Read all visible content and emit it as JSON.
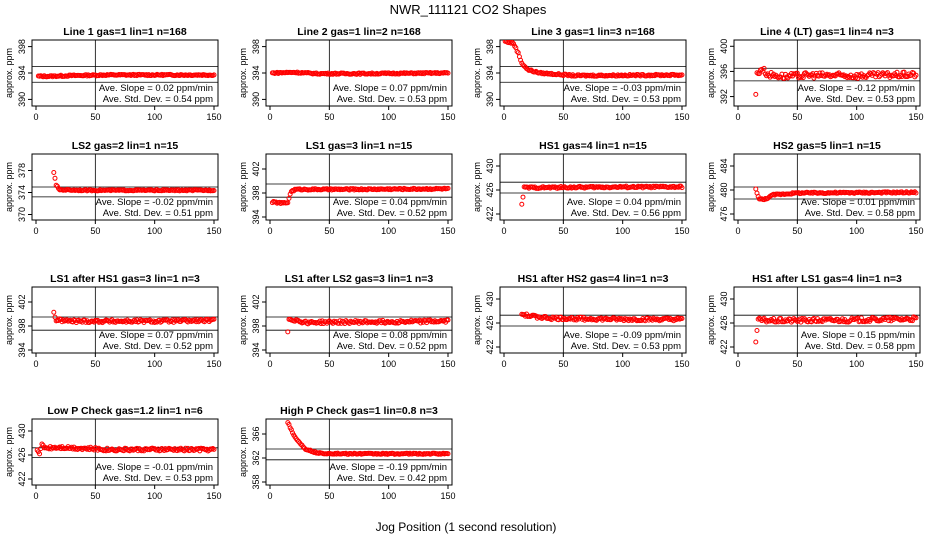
{
  "figure": {
    "title": "NWR_111121  CO2 Shapes",
    "xlabel": "Jog Position (1 second resolution)",
    "colors": {
      "points": "#ff0000",
      "axes": "#000000",
      "lines": "#000000"
    }
  },
  "chart_data": [
    {
      "type": "scatter",
      "title": "Line 1 gas=1 lin=1 n=168",
      "ylabel": "approx. ppm",
      "xlim": [
        0,
        150
      ],
      "ylim": [
        389,
        399
      ],
      "xticks": [
        0,
        50,
        100,
        150
      ],
      "yticks": [
        390,
        394,
        398
      ],
      "hlines": [
        395.0,
        392.6
      ],
      "vline": 50,
      "xstart": 2,
      "xend": 150,
      "points": [
        [
          2,
          393.5
        ],
        [
          10,
          393.5
        ],
        [
          30,
          393.6
        ],
        [
          60,
          393.7
        ],
        [
          100,
          393.7
        ],
        [
          150,
          393.7
        ]
      ],
      "noise": 0.1,
      "annotation": [
        "Ave. Slope = 0.02  ppm/min",
        "Ave. Std. Dev. = 0.54  ppm"
      ]
    },
    {
      "type": "scatter",
      "title": "Line 2 gas=1 lin=2 n=168",
      "ylabel": "approx. ppm",
      "xlim": [
        0,
        150
      ],
      "ylim": [
        389,
        399
      ],
      "xticks": [
        0,
        50,
        100,
        150
      ],
      "yticks": [
        390,
        394,
        398
      ],
      "hlines": [],
      "vline": 50,
      "xstart": 2,
      "xend": 150,
      "points": [
        [
          2,
          394.0
        ],
        [
          20,
          394.1
        ],
        [
          40,
          393.9
        ],
        [
          80,
          393.9
        ],
        [
          150,
          394.0
        ]
      ],
      "noise": 0.1,
      "annotation": [
        "Ave. Slope = 0.07  ppm/min",
        "Ave. Std. Dev. = 0.53  ppm"
      ]
    },
    {
      "type": "scatter",
      "title": "Line 3 gas=1 lin=3 n=168",
      "ylabel": "approx. ppm",
      "xlim": [
        0,
        150
      ],
      "ylim": [
        389,
        399
      ],
      "xticks": [
        0,
        50,
        100,
        150
      ],
      "yticks": [
        390,
        394,
        398
      ],
      "hlines": [
        395.0,
        392.6
      ],
      "vline": 50,
      "xstart": 1,
      "xend": 150,
      "points": [
        [
          1,
          398.8
        ],
        [
          8,
          398.5
        ],
        [
          12,
          397.0
        ],
        [
          15,
          395.5
        ],
        [
          20,
          394.5
        ],
        [
          30,
          394.0
        ],
        [
          60,
          393.6
        ],
        [
          150,
          393.7
        ]
      ],
      "noise": 0.12,
      "annotation": [
        "Ave. Slope = -0.03  ppm/min",
        "Ave. Std. Dev. = 0.53  ppm"
      ]
    },
    {
      "type": "scatter",
      "title": "Line 4 (LT) gas=1 lin=4 n=3",
      "ylabel": "approx. ppm",
      "xlim": [
        0,
        150
      ],
      "ylim": [
        390.5,
        401
      ],
      "xticks": [
        0,
        50,
        100,
        150
      ],
      "yticks": [
        392,
        396,
        400
      ],
      "hlines": [
        396.5,
        394.5
      ],
      "vline": 50,
      "xstart": 15,
      "xend": 150,
      "points": [
        [
          15,
          392.5
        ],
        [
          16,
          395.5
        ],
        [
          20,
          396.5
        ],
        [
          25,
          395.5
        ],
        [
          40,
          395.2
        ],
        [
          60,
          395.4
        ],
        [
          100,
          395.3
        ],
        [
          150,
          395.5
        ]
      ],
      "noise": 0.45,
      "annotation": [
        "Ave. Slope = -0.12  ppm/min",
        "Ave. Std. Dev. = 0.53  ppm"
      ]
    },
    {
      "type": "scatter",
      "title": "LS2 gas=2 lin=1 n=15",
      "ylabel": "approx. ppm",
      "xlim": [
        0,
        150
      ],
      "ylim": [
        369,
        381
      ],
      "xticks": [
        0,
        50,
        100,
        150
      ],
      "yticks": [
        370,
        374,
        378
      ],
      "hlines": [
        375.0,
        373.2
      ],
      "vline": 50,
      "xstart": 15,
      "xend": 150,
      "points": [
        [
          15,
          377.7
        ],
        [
          17,
          375.3
        ],
        [
          20,
          374.5
        ],
        [
          40,
          374.4
        ],
        [
          100,
          374.4
        ],
        [
          150,
          374.4
        ]
      ],
      "noise": 0.1,
      "annotation": [
        "Ave. Slope = -0.02  ppm/min",
        "Ave. Std. Dev. = 0.51  ppm"
      ]
    },
    {
      "type": "scatter",
      "title": "LS1 gas=3 lin=1 n=15",
      "ylabel": "approx. ppm",
      "xlim": [
        0,
        150
      ],
      "ylim": [
        393.5,
        404.5
      ],
      "xticks": [
        0,
        50,
        100,
        150
      ],
      "yticks": [
        394,
        398,
        402
      ],
      "hlines": [
        399.5,
        397.3
      ],
      "vline": 50,
      "xstart": 2,
      "xend": 150,
      "points": [
        [
          2,
          396.5
        ],
        [
          10,
          396.3
        ],
        [
          15,
          396.4
        ],
        [
          16,
          397.2
        ],
        [
          18,
          398.3
        ],
        [
          22,
          398.6
        ],
        [
          60,
          398.6
        ],
        [
          150,
          398.7
        ]
      ],
      "noise": 0.12,
      "annotation": [
        "Ave. Slope = 0.04  ppm/min",
        "Ave. Std. Dev. = 0.52  ppm"
      ]
    },
    {
      "type": "scatter",
      "title": "HS1 gas=4 lin=1 n=15",
      "ylabel": "approx. ppm",
      "xlim": [
        0,
        150
      ],
      "ylim": [
        421,
        432
      ],
      "xticks": [
        0,
        50,
        100,
        150
      ],
      "yticks": [
        422,
        426,
        430
      ],
      "hlines": [
        427.3,
        425.5
      ],
      "vline": 50,
      "xstart": 15,
      "xend": 150,
      "points": [
        [
          15,
          423.5
        ],
        [
          17,
          426.4
        ],
        [
          30,
          426.4
        ],
        [
          100,
          426.5
        ],
        [
          150,
          426.5
        ]
      ],
      "noise": 0.15,
      "annotation": [
        "Ave. Slope = 0.04  ppm/min",
        "Ave. Std. Dev. = 0.56  ppm"
      ]
    },
    {
      "type": "scatter",
      "title": "HS2 gas=5 lin=1 n=15",
      "ylabel": "approx. ppm",
      "xlim": [
        0,
        150
      ],
      "ylim": [
        475,
        486
      ],
      "xticks": [
        0,
        50,
        100,
        150
      ],
      "yticks": [
        476,
        480,
        484
      ],
      "hlines": [
        480.5,
        478.5
      ],
      "vline": 50,
      "xstart": 15,
      "xend": 150,
      "points": [
        [
          15,
          480.1
        ],
        [
          18,
          478.5
        ],
        [
          22,
          478.4
        ],
        [
          30,
          479.2
        ],
        [
          50,
          479.5
        ],
        [
          150,
          479.6
        ]
      ],
      "noise": 0.12,
      "annotation": [
        "Ave. Slope = 0.01  ppm/min",
        "Ave. Std. Dev. = 0.58  ppm"
      ]
    },
    {
      "type": "scatter",
      "title": "LS1 after HS1 gas=3 lin=1 n=3",
      "ylabel": "approx. ppm",
      "xlim": [
        0,
        150
      ],
      "ylim": [
        393.5,
        404.5
      ],
      "xticks": [
        0,
        50,
        100,
        150
      ],
      "yticks": [
        394,
        398,
        402
      ],
      "hlines": [
        399.5,
        397.3
      ],
      "vline": 50,
      "xstart": 15,
      "xend": 150,
      "points": [
        [
          15,
          400.2
        ],
        [
          17,
          399.0
        ],
        [
          30,
          398.8
        ],
        [
          100,
          398.8
        ],
        [
          150,
          398.9
        ]
      ],
      "noise": 0.25,
      "annotation": [
        "Ave. Slope = 0.07  ppm/min",
        "Ave. Std. Dev. = 0.52  ppm"
      ]
    },
    {
      "type": "scatter",
      "title": "LS1 after LS2 gas=3 lin=1 n=3",
      "ylabel": "approx. ppm",
      "xlim": [
        0,
        150
      ],
      "ylim": [
        393.5,
        404.5
      ],
      "xticks": [
        0,
        50,
        100,
        150
      ],
      "yticks": [
        394,
        398,
        402
      ],
      "hlines": [
        399.5,
        397.3
      ],
      "vline": 50,
      "xstart": 15,
      "xend": 150,
      "points": [
        [
          15,
          397.0
        ],
        [
          16,
          399.2
        ],
        [
          30,
          398.6
        ],
        [
          100,
          398.7
        ],
        [
          150,
          398.8
        ]
      ],
      "noise": 0.25,
      "annotation": [
        "Ave. Slope = 0.08  ppm/min",
        "Ave. Std. Dev. = 0.52  ppm"
      ]
    },
    {
      "type": "scatter",
      "title": "HS1 after HS2 gas=4 lin=1 n=3",
      "ylabel": "approx. ppm",
      "xlim": [
        0,
        150
      ],
      "ylim": [
        421,
        432
      ],
      "xticks": [
        0,
        50,
        100,
        150
      ],
      "yticks": [
        422,
        426,
        430
      ],
      "hlines": [
        427.3,
        425.5
      ],
      "vline": 50,
      "xstart": 15,
      "xend": 150,
      "points": [
        [
          15,
          427.5
        ],
        [
          20,
          427.2
        ],
        [
          40,
          426.8
        ],
        [
          100,
          426.6
        ],
        [
          150,
          426.6
        ]
      ],
      "noise": 0.25,
      "annotation": [
        "Ave. Slope = -0.09  ppm/min",
        "Ave. Std. Dev. = 0.53  ppm"
      ]
    },
    {
      "type": "scatter",
      "title": "HS1 after LS1 gas=4 lin=1 n=3",
      "ylabel": "approx. ppm",
      "xlim": [
        0,
        150
      ],
      "ylim": [
        421,
        432
      ],
      "xticks": [
        0,
        50,
        100,
        150
      ],
      "yticks": [
        422,
        426,
        430
      ],
      "hlines": [
        427.3,
        425.5
      ],
      "vline": 50,
      "xstart": 15,
      "xend": 150,
      "points": [
        [
          15,
          423.0
        ],
        [
          17,
          426.5
        ],
        [
          30,
          426.4
        ],
        [
          100,
          426.5
        ],
        [
          150,
          426.7
        ]
      ],
      "noise": 0.35,
      "annotation": [
        "Ave. Slope = 0.15  ppm/min",
        "Ave. Std. Dev. = 0.58  ppm"
      ]
    },
    {
      "type": "scatter",
      "title": "Low P Check gas=1.2 lin=1 n=6",
      "ylabel": "approx. ppm",
      "xlim": [
        0,
        150
      ],
      "ylim": [
        421,
        432
      ],
      "xticks": [
        0,
        50,
        100,
        150
      ],
      "yticks": [
        422,
        426,
        430
      ],
      "hlines": [
        427.2,
        425.6
      ],
      "vline": 50,
      "xstart": 1,
      "xend": 150,
      "points": [
        [
          1,
          427.0
        ],
        [
          3,
          426.0
        ],
        [
          5,
          427.8
        ],
        [
          8,
          427.2
        ],
        [
          20,
          427.3
        ],
        [
          60,
          426.9
        ],
        [
          150,
          426.9
        ]
      ],
      "noise": 0.25,
      "annotation": [
        "Ave. Slope = -0.01  ppm/min",
        "Ave. Std. Dev. = 0.53  ppm"
      ]
    },
    {
      "type": "scatter",
      "title": "High P Check gas=1 lin=0.8 n=3",
      "ylabel": "approx. ppm",
      "xlim": [
        0,
        150
      ],
      "ylim": [
        357.5,
        368.5
      ],
      "xticks": [
        0,
        50,
        100,
        150
      ],
      "yticks": [
        358,
        362,
        366
      ],
      "hlines": [
        363.5,
        361.7
      ],
      "vline": 50,
      "xstart": 15,
      "xend": 150,
      "points": [
        [
          15,
          368.0
        ],
        [
          20,
          365.8
        ],
        [
          25,
          364.5
        ],
        [
          30,
          363.5
        ],
        [
          40,
          362.8
        ],
        [
          60,
          362.7
        ],
        [
          150,
          362.7
        ]
      ],
      "noise": 0.1,
      "annotation": [
        "Ave. Slope = -0.19  ppm/min",
        "Ave. Std. Dev. = 0.42  ppm"
      ]
    }
  ]
}
